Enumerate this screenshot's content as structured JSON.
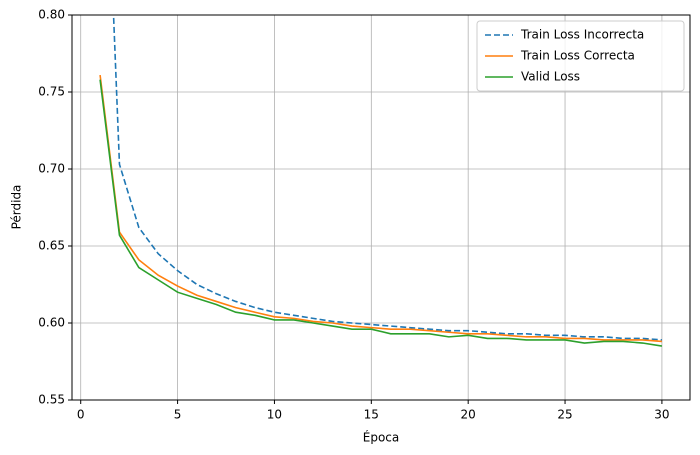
{
  "chart_data": {
    "type": "line",
    "x_label": "Época",
    "y_label": "Pérdida",
    "x": [
      1,
      2,
      3,
      4,
      5,
      6,
      7,
      8,
      9,
      10,
      11,
      12,
      13,
      14,
      15,
      16,
      17,
      18,
      19,
      20,
      21,
      22,
      23,
      24,
      25,
      26,
      27,
      28,
      29,
      30
    ],
    "series": [
      {
        "name": "Train Loss Incorrecta",
        "color": "#1f77b4",
        "dashed": true,
        "values": [
          1.02,
          0.703,
          0.662,
          0.645,
          0.634,
          0.625,
          0.619,
          0.614,
          0.61,
          0.607,
          0.605,
          0.603,
          0.601,
          0.6,
          0.599,
          0.598,
          0.597,
          0.596,
          0.595,
          0.595,
          0.594,
          0.593,
          0.593,
          0.592,
          0.592,
          0.591,
          0.591,
          0.59,
          0.59,
          0.589
        ]
      },
      {
        "name": "Train Loss Correcta",
        "color": "#ff7f0e",
        "dashed": false,
        "values": [
          0.761,
          0.659,
          0.641,
          0.631,
          0.624,
          0.618,
          0.614,
          0.61,
          0.607,
          0.604,
          0.603,
          0.601,
          0.6,
          0.598,
          0.597,
          0.596,
          0.596,
          0.595,
          0.594,
          0.593,
          0.593,
          0.592,
          0.591,
          0.591,
          0.59,
          0.59,
          0.589,
          0.589,
          0.589,
          0.588
        ]
      },
      {
        "name": "Valid Loss",
        "color": "#2ca02c",
        "dashed": false,
        "values": [
          0.758,
          0.657,
          0.636,
          0.628,
          0.62,
          0.616,
          0.612,
          0.607,
          0.605,
          0.602,
          0.602,
          0.6,
          0.598,
          0.596,
          0.596,
          0.593,
          0.593,
          0.593,
          0.591,
          0.592,
          0.59,
          0.59,
          0.589,
          0.589,
          0.589,
          0.587,
          0.588,
          0.588,
          0.587,
          0.585
        ]
      }
    ],
    "xlim": [
      -0.45,
      31.45
    ],
    "xticks": [
      0,
      5,
      10,
      15,
      20,
      25,
      30
    ],
    "ylim": [
      0.55,
      0.8
    ],
    "yticks": [
      0.55,
      {
        "value": 0.6,
        "label": "0.60"
      },
      0.65,
      {
        "value": 0.7,
        "label": "0.70"
      },
      0.75,
      {
        "value": 0.8,
        "label": "0.80"
      }
    ],
    "grid": true,
    "legend": "upper-right"
  }
}
